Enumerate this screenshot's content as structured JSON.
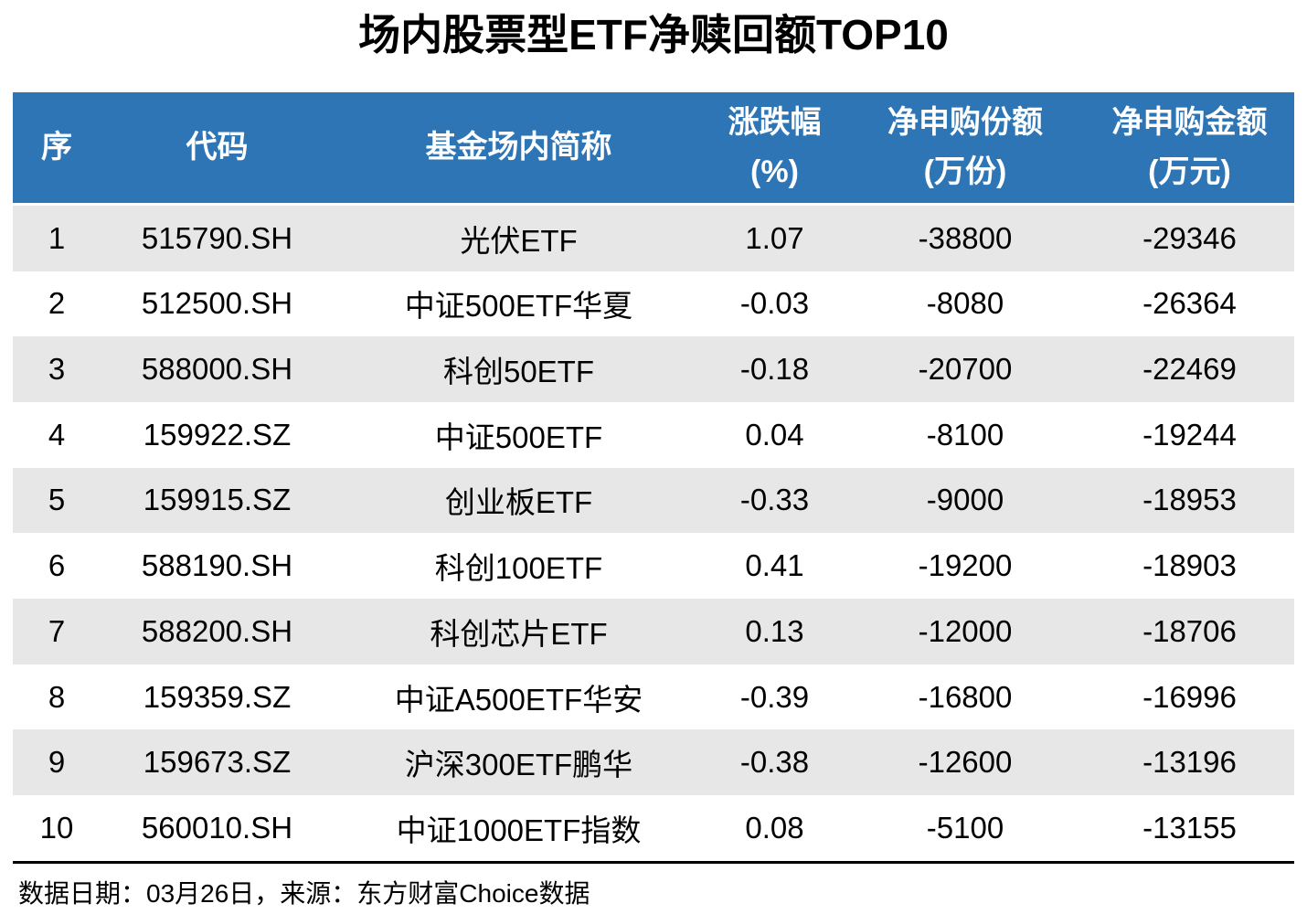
{
  "title": "场内股票型ETF净赎回额TOP10",
  "columns": [
    {
      "line1": "序",
      "line2": ""
    },
    {
      "line1": "代码",
      "line2": ""
    },
    {
      "line1": "基金场内简称",
      "line2": ""
    },
    {
      "line1": "涨跌幅",
      "line2": "(%)"
    },
    {
      "line1": "净申购份额",
      "line2": "(万份)"
    },
    {
      "line1": "净申购金额",
      "line2": "(万元)"
    }
  ],
  "rows": [
    [
      "1",
      "515790.SH",
      "光伏ETF",
      "1.07",
      "-38800",
      "-29346"
    ],
    [
      "2",
      "512500.SH",
      "中证500ETF华夏",
      "-0.03",
      "-8080",
      "-26364"
    ],
    [
      "3",
      "588000.SH",
      "科创50ETF",
      "-0.18",
      "-20700",
      "-22469"
    ],
    [
      "4",
      "159922.SZ",
      "中证500ETF",
      "0.04",
      "-8100",
      "-19244"
    ],
    [
      "5",
      "159915.SZ",
      "创业板ETF",
      "-0.33",
      "-9000",
      "-18953"
    ],
    [
      "6",
      "588190.SH",
      "科创100ETF",
      "0.41",
      "-19200",
      "-18903"
    ],
    [
      "7",
      "588200.SH",
      "科创芯片ETF",
      "0.13",
      "-12000",
      "-18706"
    ],
    [
      "8",
      "159359.SZ",
      "中证A500ETF华安",
      "-0.39",
      "-16800",
      "-16996"
    ],
    [
      "9",
      "159673.SZ",
      "沪深300ETF鹏华",
      "-0.38",
      "-12600",
      "-13196"
    ],
    [
      "10",
      "560010.SH",
      "中证1000ETF指数",
      "0.08",
      "-5100",
      "-13155"
    ]
  ],
  "footer": "数据日期：03月26日，来源：东方财富Choice数据",
  "colors": {
    "header_bg": "#2E75B6",
    "header_text": "#FFFFFF",
    "stripe_bg": "#E7E7E7",
    "rule": "#000000"
  },
  "chart_data": {
    "type": "table",
    "title": "场内股票型ETF净赎回额TOP10",
    "columns": [
      "序",
      "代码",
      "基金场内简称",
      "涨跌幅(%)",
      "净申购份额(万份)",
      "净申购金额(万元)"
    ],
    "rows": [
      [
        1,
        "515790.SH",
        "光伏ETF",
        1.07,
        -38800,
        -29346
      ],
      [
        2,
        "512500.SH",
        "中证500ETF华夏",
        -0.03,
        -8080,
        -26364
      ],
      [
        3,
        "588000.SH",
        "科创50ETF",
        -0.18,
        -20700,
        -22469
      ],
      [
        4,
        "159922.SZ",
        "中证500ETF",
        0.04,
        -8100,
        -19244
      ],
      [
        5,
        "159915.SZ",
        "创业板ETF",
        -0.33,
        -9000,
        -18953
      ],
      [
        6,
        "588190.SH",
        "科创100ETF",
        0.41,
        -19200,
        -18903
      ],
      [
        7,
        "588200.SH",
        "科创芯片ETF",
        0.13,
        -12000,
        -18706
      ],
      [
        8,
        "159359.SZ",
        "中证A500ETF华安",
        -0.39,
        -16800,
        -16996
      ],
      [
        9,
        "159673.SZ",
        "沪深300ETF鹏华",
        -0.38,
        -12600,
        -13196
      ],
      [
        10,
        "560010.SH",
        "中证1000ETF指数",
        0.08,
        -5100,
        -13155
      ]
    ],
    "note": "数据日期：03月26日，来源：东方财富Choice数据"
  }
}
